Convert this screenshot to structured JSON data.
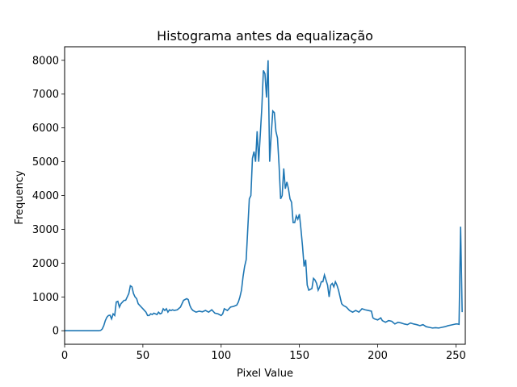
{
  "chart_data": {
    "type": "line",
    "title": "Histograma antes da equalização",
    "xlabel": "Pixel Value",
    "ylabel": "Frequency",
    "xlim": [
      0,
      256
    ],
    "ylim": [
      -400,
      8400
    ],
    "x_ticks": [
      0,
      50,
      100,
      150,
      200,
      250
    ],
    "y_ticks": [
      0,
      1000,
      2000,
      3000,
      4000,
      5000,
      6000,
      7000,
      8000
    ],
    "grid": false,
    "legend": "none",
    "line_color": "#1f77b4",
    "series": [
      {
        "points": [
          [
            0,
            0
          ],
          [
            5,
            0
          ],
          [
            10,
            0
          ],
          [
            15,
            0
          ],
          [
            20,
            0
          ],
          [
            22,
            0
          ],
          [
            23,
            10
          ],
          [
            24,
            50
          ],
          [
            25,
            150
          ],
          [
            26,
            300
          ],
          [
            27,
            400
          ],
          [
            28,
            450
          ],
          [
            29,
            460
          ],
          [
            30,
            350
          ],
          [
            31,
            500
          ],
          [
            32,
            450
          ],
          [
            33,
            850
          ],
          [
            34,
            870
          ],
          [
            35,
            700
          ],
          [
            36,
            800
          ],
          [
            37,
            850
          ],
          [
            38,
            900
          ],
          [
            39,
            900
          ],
          [
            40,
            1000
          ],
          [
            41,
            1100
          ],
          [
            42,
            1330
          ],
          [
            43,
            1300
          ],
          [
            44,
            1100
          ],
          [
            45,
            1000
          ],
          [
            46,
            950
          ],
          [
            47,
            800
          ],
          [
            48,
            750
          ],
          [
            49,
            700
          ],
          [
            50,
            650
          ],
          [
            51,
            600
          ],
          [
            52,
            550
          ],
          [
            53,
            450
          ],
          [
            54,
            450
          ],
          [
            55,
            500
          ],
          [
            56,
            480
          ],
          [
            57,
            520
          ],
          [
            58,
            500
          ],
          [
            59,
            480
          ],
          [
            60,
            550
          ],
          [
            61,
            500
          ],
          [
            62,
            520
          ],
          [
            63,
            650
          ],
          [
            64,
            600
          ],
          [
            65,
            650
          ],
          [
            66,
            550
          ],
          [
            67,
            620
          ],
          [
            68,
            600
          ],
          [
            69,
            620
          ],
          [
            70,
            600
          ],
          [
            72,
            620
          ],
          [
            74,
            700
          ],
          [
            76,
            900
          ],
          [
            78,
            950
          ],
          [
            79,
            920
          ],
          [
            80,
            750
          ],
          [
            81,
            650
          ],
          [
            82,
            600
          ],
          [
            84,
            550
          ],
          [
            86,
            580
          ],
          [
            88,
            560
          ],
          [
            90,
            600
          ],
          [
            92,
            550
          ],
          [
            94,
            620
          ],
          [
            96,
            520
          ],
          [
            98,
            500
          ],
          [
            100,
            450
          ],
          [
            101,
            500
          ],
          [
            102,
            650
          ],
          [
            104,
            600
          ],
          [
            106,
            700
          ],
          [
            108,
            720
          ],
          [
            110,
            760
          ],
          [
            111,
            850
          ],
          [
            112,
            1000
          ],
          [
            113,
            1200
          ],
          [
            114,
            1600
          ],
          [
            115,
            1900
          ],
          [
            116,
            2100
          ],
          [
            117,
            3000
          ],
          [
            118,
            3900
          ],
          [
            119,
            4000
          ],
          [
            120,
            5100
          ],
          [
            121,
            5300
          ],
          [
            122,
            5000
          ],
          [
            123,
            5900
          ],
          [
            124,
            5000
          ],
          [
            125,
            5800
          ],
          [
            126,
            6600
          ],
          [
            127,
            7700
          ],
          [
            128,
            7600
          ],
          [
            129,
            6900
          ],
          [
            130,
            8000
          ],
          [
            131,
            5000
          ],
          [
            132,
            5800
          ],
          [
            133,
            6500
          ],
          [
            134,
            6450
          ],
          [
            135,
            5900
          ],
          [
            136,
            5700
          ],
          [
            137,
            4900
          ],
          [
            138,
            3900
          ],
          [
            139,
            4000
          ],
          [
            140,
            4800
          ],
          [
            141,
            4200
          ],
          [
            142,
            4400
          ],
          [
            143,
            4200
          ],
          [
            144,
            3900
          ],
          [
            145,
            3800
          ],
          [
            146,
            3200
          ],
          [
            147,
            3200
          ],
          [
            148,
            3400
          ],
          [
            149,
            3300
          ],
          [
            150,
            3450
          ],
          [
            151,
            3000
          ],
          [
            152,
            2500
          ],
          [
            153,
            1900
          ],
          [
            154,
            2100
          ],
          [
            155,
            1350
          ],
          [
            156,
            1200
          ],
          [
            158,
            1250
          ],
          [
            159,
            1550
          ],
          [
            160,
            1500
          ],
          [
            161,
            1400
          ],
          [
            162,
            1200
          ],
          [
            163,
            1300
          ],
          [
            164,
            1450
          ],
          [
            165,
            1450
          ],
          [
            166,
            1650
          ],
          [
            167,
            1500
          ],
          [
            168,
            1350
          ],
          [
            169,
            1000
          ],
          [
            170,
            1350
          ],
          [
            171,
            1400
          ],
          [
            172,
            1300
          ],
          [
            173,
            1450
          ],
          [
            174,
            1350
          ],
          [
            175,
            1200
          ],
          [
            176,
            1000
          ],
          [
            177,
            800
          ],
          [
            178,
            750
          ],
          [
            180,
            700
          ],
          [
            182,
            600
          ],
          [
            184,
            550
          ],
          [
            186,
            600
          ],
          [
            188,
            550
          ],
          [
            190,
            650
          ],
          [
            192,
            620
          ],
          [
            194,
            600
          ],
          [
            196,
            580
          ],
          [
            197,
            380
          ],
          [
            198,
            350
          ],
          [
            200,
            320
          ],
          [
            202,
            380
          ],
          [
            203,
            300
          ],
          [
            205,
            250
          ],
          [
            207,
            300
          ],
          [
            209,
            280
          ],
          [
            211,
            200
          ],
          [
            213,
            250
          ],
          [
            215,
            230
          ],
          [
            217,
            200
          ],
          [
            219,
            180
          ],
          [
            221,
            230
          ],
          [
            223,
            200
          ],
          [
            225,
            180
          ],
          [
            227,
            150
          ],
          [
            229,
            180
          ],
          [
            231,
            120
          ],
          [
            233,
            100
          ],
          [
            235,
            80
          ],
          [
            237,
            90
          ],
          [
            239,
            80
          ],
          [
            241,
            100
          ],
          [
            243,
            120
          ],
          [
            245,
            150
          ],
          [
            247,
            170
          ],
          [
            249,
            190
          ],
          [
            250,
            200
          ],
          [
            251,
            200
          ],
          [
            252,
            190
          ],
          [
            253,
            3080
          ],
          [
            254,
            550
          ]
        ]
      }
    ]
  }
}
